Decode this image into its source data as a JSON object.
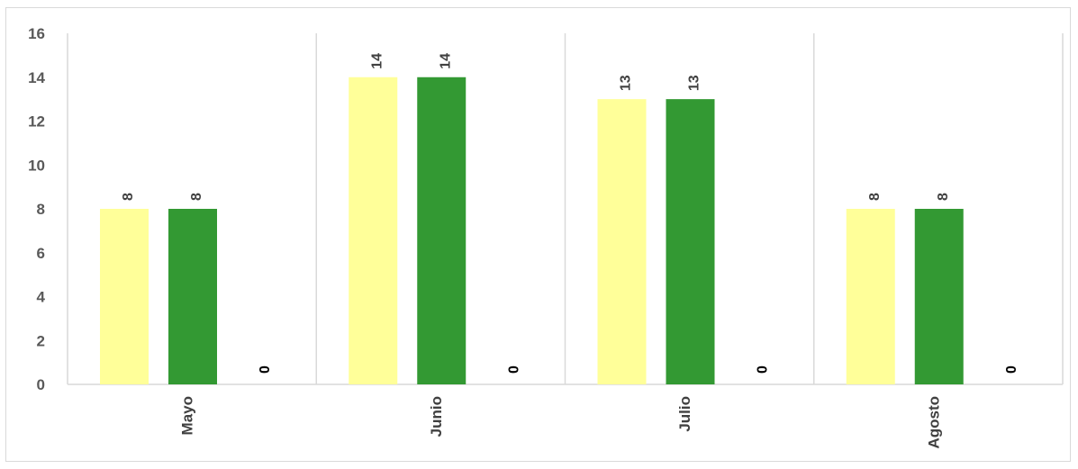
{
  "chart_data": {
    "type": "bar",
    "categories": [
      "Mayo",
      "Junio",
      "Julio",
      "Agosto"
    ],
    "series": [
      {
        "values": [
          8,
          14,
          13,
          8
        ],
        "color": "#ffff99"
      },
      {
        "values": [
          8,
          14,
          13,
          8
        ],
        "color": "#339933"
      },
      {
        "values": [
          0,
          0,
          0,
          0
        ],
        "color": "#000000"
      }
    ],
    "ylim": [
      0,
      16
    ],
    "yticks": [
      0,
      2,
      4,
      6,
      8,
      10,
      12,
      14,
      16
    ],
    "grid": false,
    "category_separators": true,
    "data_labels": true,
    "title": "",
    "xlabel": "",
    "ylabel": ""
  }
}
